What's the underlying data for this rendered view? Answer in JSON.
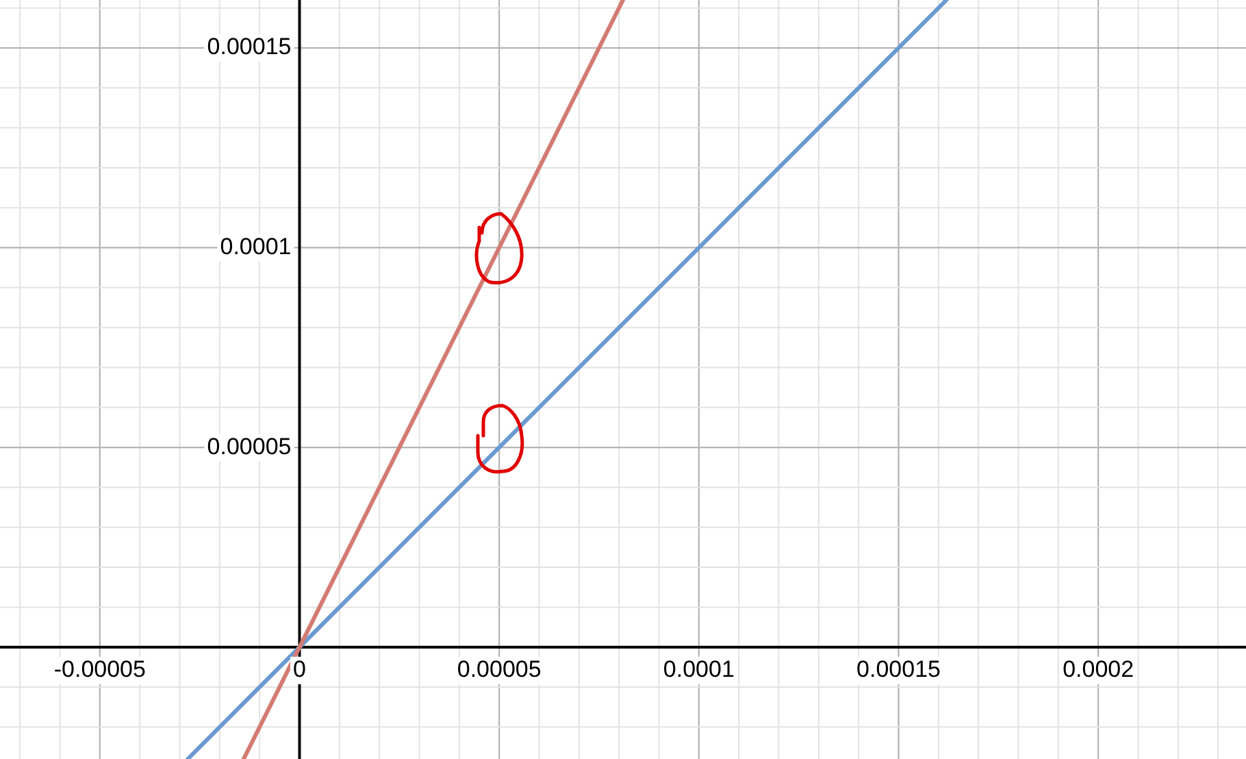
{
  "chart_data": {
    "type": "line",
    "xlim": [
      -7.5e-05,
      0.000237
    ],
    "ylim": [
      -2.8e-05,
      0.000162
    ],
    "xticks": [
      {
        "value": -5e-05,
        "label": "-0.00005"
      },
      0,
      {
        "value": 5e-05,
        "label": "0.00005"
      },
      0.0001,
      0.00015,
      0.0002
    ],
    "yticks": [
      {
        "value": 0,
        "label": null
      },
      {
        "value": 5e-05,
        "label": "0.00005"
      },
      0.0001,
      0.00015
    ],
    "grid": true,
    "legend": false,
    "marker": "none",
    "line_style": "solid",
    "series": [
      {
        "color": "#d47a72",
        "x": [
          -1.4e-05,
          8.1e-05
        ],
        "values": [
          -2.8e-05,
          0.000162
        ]
      },
      {
        "color": "#6a9ad0",
        "x": [
          -2.8e-05,
          0.000162
        ],
        "values": [
          -2.8e-05,
          0.000162
        ]
      }
    ]
  }
}
